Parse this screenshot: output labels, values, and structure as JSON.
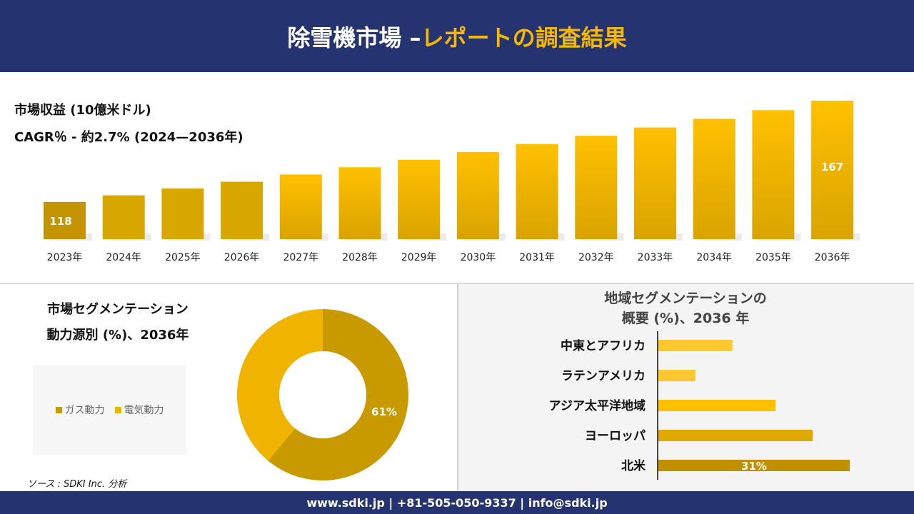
{
  "header": {
    "title_part1": "除雪機市場 –",
    "title_part2": "レポートの調査結果"
  },
  "revenue": {
    "title": "市場収益 (10億米ドル)",
    "cagr": "CAGR％ - 約2.7% (2024—2036年)"
  },
  "segment": {
    "title_line1": "市場セグメンテーション",
    "title_line2": "動力源別 (%)、2036年"
  },
  "regional": {
    "title_line1": "地域セグメンテーションの",
    "title_line2": "概要 (%)、2036 年"
  },
  "source": "ソース : SDKI Inc. 分析",
  "footer": "www.sdki.jp | +81-505-050-9337 | info@sdki.jp",
  "colors": {
    "navy": "#253470",
    "gold": "#f5b800",
    "dark_gold": "#c49500"
  },
  "chart_data": [
    {
      "type": "bar",
      "categories": [
        "2023年",
        "2024年",
        "2025年",
        "2026年",
        "2027年",
        "2028年",
        "2029年",
        "2030年",
        "2031年",
        "2032年",
        "2033年",
        "2034年",
        "2035年",
        "2036年"
      ],
      "values": [
        118,
        121.2,
        124.5,
        127.8,
        131.3,
        134.8,
        138.4,
        142.2,
        146.0,
        150.0,
        154.0,
        158.2,
        162.4,
        167
      ],
      "data_labels": {
        "0": "118",
        "13": "167"
      },
      "ylim": [
        100,
        170
      ],
      "grid": false
    },
    {
      "type": "pie",
      "hole": true,
      "labels": [
        "ガス動力",
        "電気動力"
      ],
      "values": [
        61,
        39
      ],
      "colors": [
        "#c99a00",
        "#f0b400"
      ],
      "data_labels": [
        "61%",
        ""
      ],
      "legend": "left"
    },
    {
      "type": "bar",
      "orientation": "horizontal",
      "categories": [
        "中東とアフリカ",
        "ラテンアメリカ",
        "アジア太平洋地域",
        "ヨーロッパ",
        "北米"
      ],
      "values": [
        12,
        6,
        19,
        25,
        31
      ],
      "data_labels": [
        "",
        "",
        "",
        "",
        "31%"
      ],
      "colors": [
        "#ffc82e",
        "#ffc82e",
        "#ffc000",
        "#e0a800",
        "#c09000"
      ]
    }
  ]
}
